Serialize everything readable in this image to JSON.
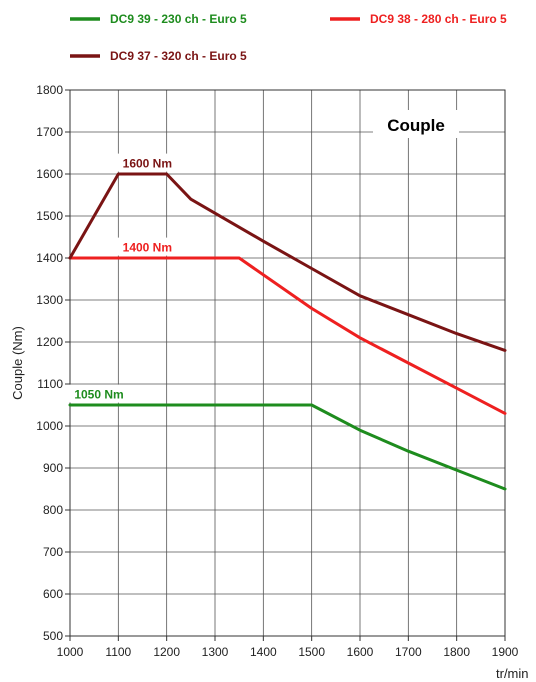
{
  "chart_data": {
    "type": "line",
    "title": "Couple",
    "xlabel": "tr/min",
    "ylabel": "Couple (Nm)",
    "xlim": [
      1000,
      1900
    ],
    "ylim": [
      500,
      1800
    ],
    "x_ticks": [
      "1000",
      "1100",
      "1200",
      "1300",
      "1400",
      "1500",
      "1600",
      "1700",
      "1800",
      "1900"
    ],
    "y_ticks": [
      "500",
      "600",
      "700",
      "800",
      "900",
      "1000",
      "1100",
      "1200",
      "1300",
      "1400",
      "1500",
      "1600",
      "1700",
      "1800"
    ],
    "grid": true,
    "legend_position": "top",
    "series": [
      {
        "name": "DC9 39 - 230 ch - Euro 5",
        "color": "#1e8c1e",
        "x": [
          1000,
          1500,
          1600,
          1700,
          1800,
          1900
        ],
        "y": [
          1050,
          1050,
          990,
          940,
          895,
          850
        ]
      },
      {
        "name": "DC9 38 - 280 ch - Euro 5",
        "color": "#ee2020",
        "x": [
          1000,
          1350,
          1500,
          1600,
          1700,
          1800,
          1900
        ],
        "y": [
          1400,
          1400,
          1280,
          1210,
          1150,
          1090,
          1030
        ]
      },
      {
        "name": "DC9 37 - 320 ch - Euro 5",
        "color": "#7a1414",
        "x": [
          1000,
          1100,
          1200,
          1250,
          1400,
          1500,
          1600,
          1700,
          1800,
          1900
        ],
        "y": [
          1400,
          1600,
          1600,
          1540,
          1440,
          1375,
          1310,
          1265,
          1220,
          1180
        ]
      }
    ],
    "annotations": [
      {
        "text": "1600 Nm",
        "color": "#7a1414",
        "x": 1160,
        "y": 1620
      },
      {
        "text": "1400 Nm",
        "color": "#ee2020",
        "x": 1160,
        "y": 1420
      },
      {
        "text": "1050 Nm",
        "color": "#1e8c1e",
        "x": 1060,
        "y": 1070
      }
    ]
  }
}
